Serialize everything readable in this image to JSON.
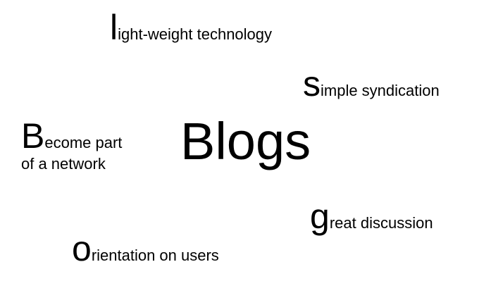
{
  "center": {
    "word": "Blogs"
  },
  "phrases": {
    "light": {
      "initial": "l",
      "rest": "ight-weight technology"
    },
    "simple": {
      "initial": "s",
      "rest": "imple syndication"
    },
    "become": {
      "initial": "B",
      "rest": "ecome part",
      "line2": "of a network"
    },
    "great": {
      "initial": "g",
      "rest": "reat discussion"
    },
    "orientation": {
      "initial": "o",
      "rest": "rientation on users"
    }
  }
}
